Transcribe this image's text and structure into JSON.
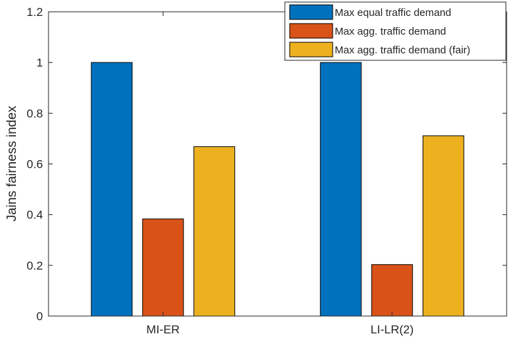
{
  "chart_data": {
    "type": "bar",
    "title": "",
    "xlabel": "",
    "ylabel": "Jains fairness index",
    "categories": [
      "MI-ER",
      "LI-LR(2)"
    ],
    "series": [
      {
        "name": "Max equal traffic demand",
        "color": "#0072BD",
        "values": [
          1.0,
          1.0
        ]
      },
      {
        "name": "Max agg. traffic demand",
        "color": "#D95319",
        "values": [
          0.383,
          0.203
        ]
      },
      {
        "name": "Max agg. traffic demand (fair)",
        "color": "#EDB120",
        "values": [
          0.668,
          0.711
        ]
      }
    ],
    "ylim": [
      0,
      1.2
    ],
    "yticks": [
      0,
      0.2,
      0.4,
      0.6,
      0.8,
      1,
      1.2
    ],
    "ytick_labels": [
      "0",
      "0.2",
      "0.4",
      "0.6",
      "0.8",
      "1",
      "1.2"
    ],
    "grid": false,
    "legend_position": "top-right"
  }
}
